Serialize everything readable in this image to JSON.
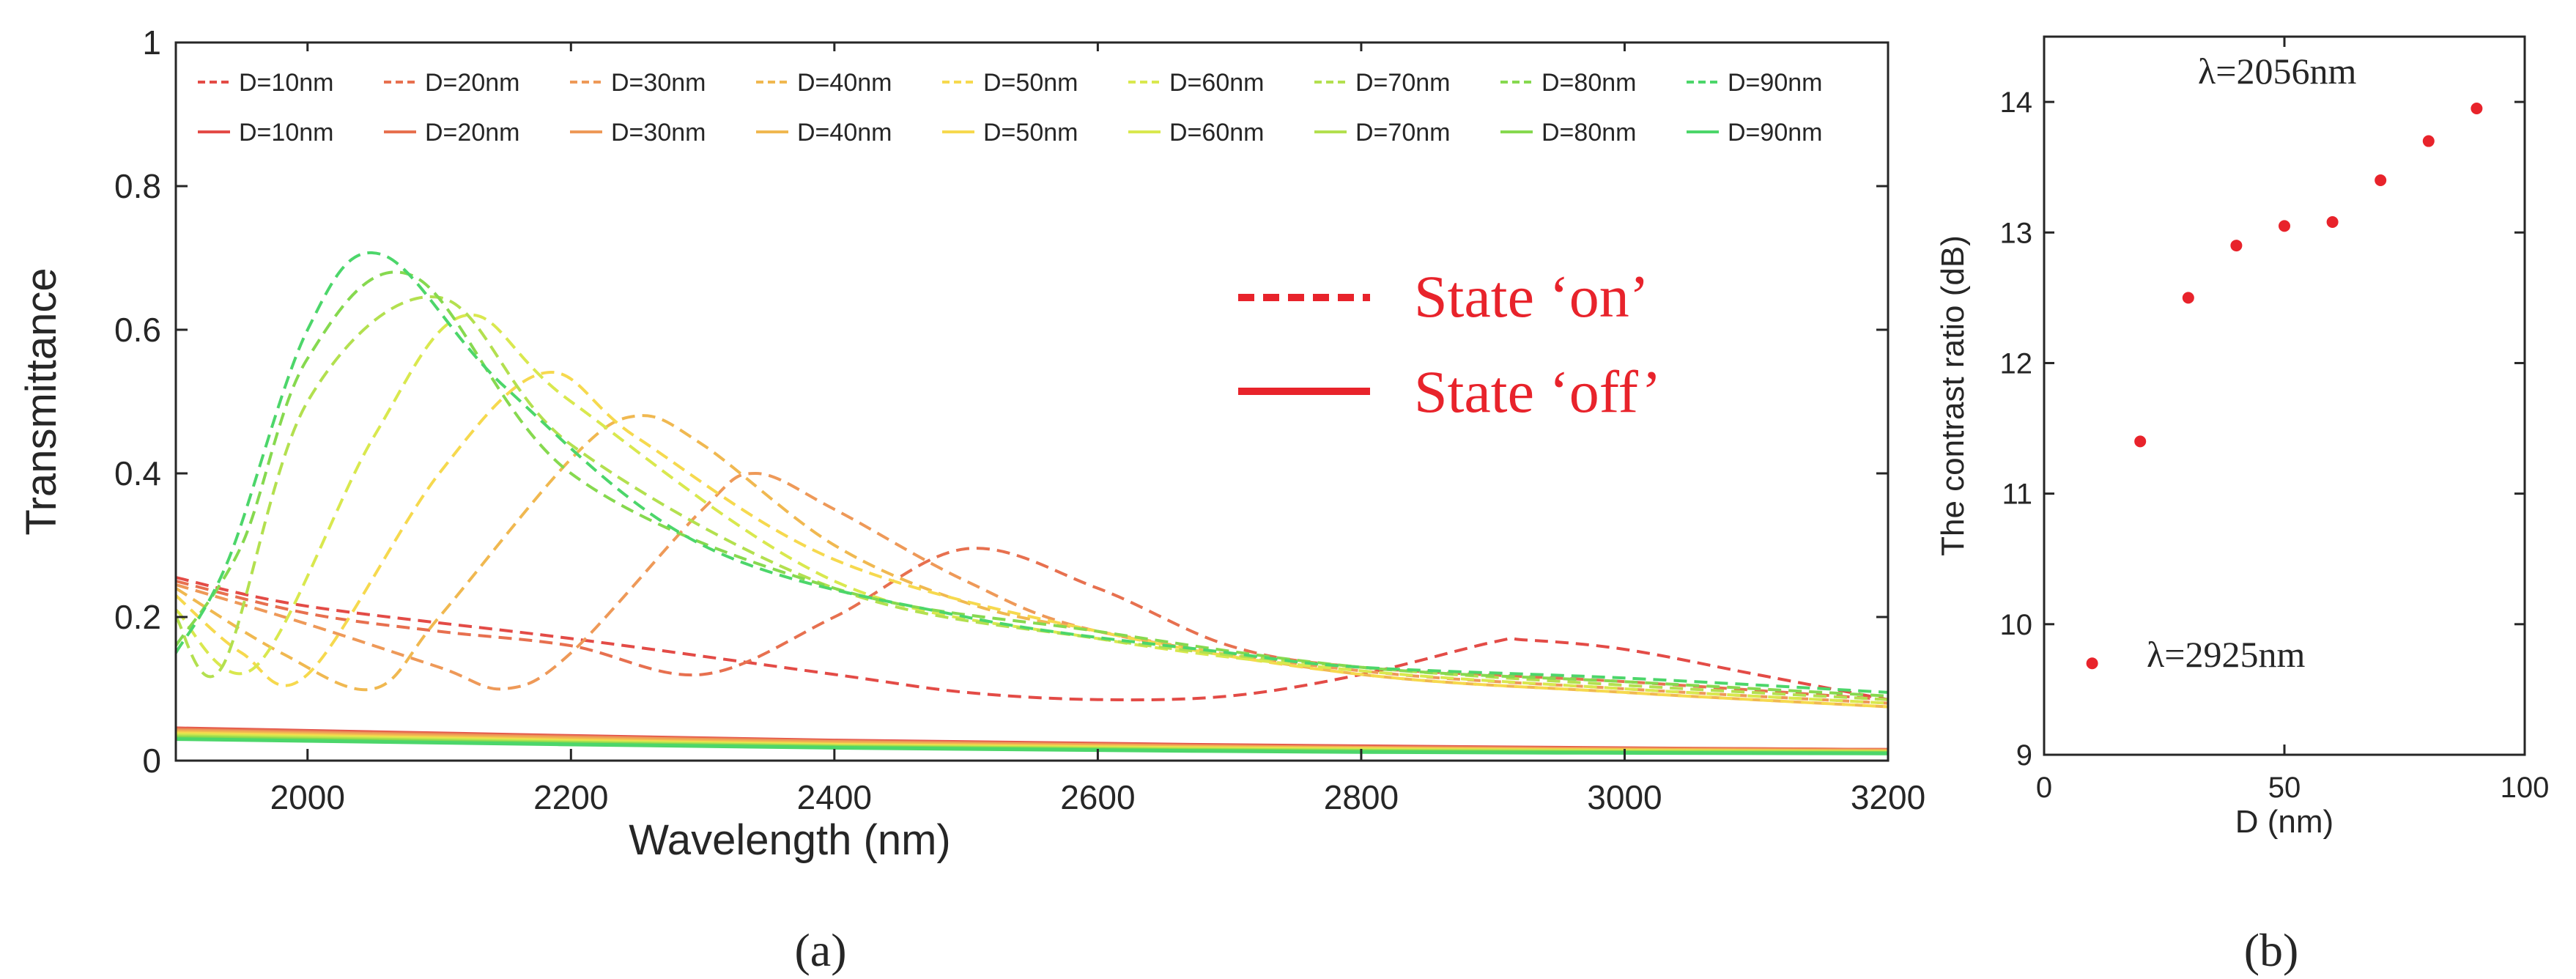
{
  "chart_data": [
    {
      "type": "line",
      "panel_label": "(a)",
      "xlabel": "Wavelength (nm)",
      "ylabel": "Transmittance",
      "xlim": [
        1900,
        3200
      ],
      "ylim": [
        0,
        1
      ],
      "x_ticks": [
        "2000",
        "2200",
        "2400",
        "2600",
        "2800",
        "3000",
        "3200"
      ],
      "y_ticks": [
        "0",
        "0.2",
        "0.4",
        "0.6",
        "0.8",
        "1"
      ],
      "state_on_label": "State   ‘on’",
      "state_off_label": "State   ‘off’",
      "state_color": "#e8232b",
      "series": [
        {
          "name": "D=10nm",
          "state": "on",
          "color": "#e34b46",
          "points": [
            [
              1900,
              0.255
            ],
            [
              2000,
              0.215
            ],
            [
              2200,
              0.17
            ],
            [
              2400,
              0.12
            ],
            [
              2500,
              0.095
            ],
            [
              2600,
              0.085
            ],
            [
              2700,
              0.09
            ],
            [
              2800,
              0.12
            ],
            [
              2900,
              0.165
            ],
            [
              2925,
              0.168
            ],
            [
              3000,
              0.155
            ],
            [
              3100,
              0.12
            ],
            [
              3200,
              0.085
            ]
          ]
        },
        {
          "name": "D=20nm",
          "state": "on",
          "color": "#e7704f",
          "points": [
            [
              1900,
              0.25
            ],
            [
              2000,
              0.205
            ],
            [
              2100,
              0.18
            ],
            [
              2200,
              0.16
            ],
            [
              2300,
              0.12
            ],
            [
              2400,
              0.2
            ],
            [
              2500,
              0.295
            ],
            [
              2600,
              0.24
            ],
            [
              2700,
              0.16
            ],
            [
              2800,
              0.13
            ],
            [
              3000,
              0.11
            ],
            [
              3200,
              0.085
            ]
          ]
        },
        {
          "name": "D=30nm",
          "state": "on",
          "color": "#ee9958",
          "points": [
            [
              1900,
              0.245
            ],
            [
              2000,
              0.19
            ],
            [
              2100,
              0.13
            ],
            [
              2150,
              0.1
            ],
            [
              2200,
              0.15
            ],
            [
              2300,
              0.35
            ],
            [
              2340,
              0.4
            ],
            [
              2400,
              0.35
            ],
            [
              2500,
              0.25
            ],
            [
              2600,
              0.18
            ],
            [
              2800,
              0.125
            ],
            [
              3000,
              0.1
            ],
            [
              3200,
              0.08
            ]
          ]
        },
        {
          "name": "D=40nm",
          "state": "on",
          "color": "#f0b850",
          "points": [
            [
              1900,
              0.24
            ],
            [
              1980,
              0.15
            ],
            [
              2050,
              0.1
            ],
            [
              2100,
              0.2
            ],
            [
              2200,
              0.42
            ],
            [
              2250,
              0.48
            ],
            [
              2300,
              0.44
            ],
            [
              2400,
              0.3
            ],
            [
              2500,
              0.22
            ],
            [
              2600,
              0.18
            ],
            [
              2800,
              0.12
            ],
            [
              3000,
              0.095
            ],
            [
              3200,
              0.075
            ]
          ]
        },
        {
          "name": "D=50nm",
          "state": "on",
          "color": "#f6d94e",
          "points": [
            [
              1900,
              0.23
            ],
            [
              1950,
              0.15
            ],
            [
              2000,
              0.12
            ],
            [
              2100,
              0.4
            ],
            [
              2180,
              0.54
            ],
            [
              2250,
              0.45
            ],
            [
              2400,
              0.28
            ],
            [
              2600,
              0.18
            ],
            [
              2800,
              0.12
            ],
            [
              3000,
              0.095
            ],
            [
              3200,
              0.075
            ]
          ]
        },
        {
          "name": "D=60nm",
          "state": "on",
          "color": "#d9e84e",
          "points": [
            [
              1900,
              0.21
            ],
            [
              1960,
              0.13
            ],
            [
              2050,
              0.45
            ],
            [
              2120,
              0.62
            ],
            [
              2200,
              0.5
            ],
            [
              2400,
              0.25
            ],
            [
              2600,
              0.17
            ],
            [
              2800,
              0.125
            ],
            [
              3000,
              0.1
            ],
            [
              3200,
              0.08
            ]
          ]
        },
        {
          "name": "D=70nm",
          "state": "on",
          "color": "#b3e04f",
          "points": [
            [
              1900,
              0.2
            ],
            [
              1935,
              0.13
            ],
            [
              2000,
              0.5
            ],
            [
              2100,
              0.645
            ],
            [
              2200,
              0.44
            ],
            [
              2400,
              0.24
            ],
            [
              2600,
              0.17
            ],
            [
              2800,
              0.13
            ],
            [
              3000,
              0.105
            ],
            [
              3200,
              0.085
            ]
          ]
        },
        {
          "name": "D=80nm",
          "state": "on",
          "color": "#86d94f",
          "points": [
            [
              1900,
              0.16
            ],
            [
              1950,
              0.3
            ],
            [
              2000,
              0.56
            ],
            [
              2080,
              0.675
            ],
            [
              2200,
              0.4
            ],
            [
              2400,
              0.24
            ],
            [
              2600,
              0.18
            ],
            [
              2800,
              0.13
            ],
            [
              3000,
              0.11
            ],
            [
              3200,
              0.09
            ]
          ]
        },
        {
          "name": "D=90nm",
          "state": "on",
          "color": "#4cd66a",
          "points": [
            [
              1900,
              0.15
            ],
            [
              1940,
              0.28
            ],
            [
              2000,
              0.6
            ],
            [
              2056,
              0.705
            ],
            [
              2150,
              0.52
            ],
            [
              2300,
              0.3
            ],
            [
              2500,
              0.2
            ],
            [
              2700,
              0.15
            ],
            [
              2800,
              0.13
            ],
            [
              3000,
              0.115
            ],
            [
              3200,
              0.095
            ]
          ]
        },
        {
          "name": "D=10nm",
          "state": "off",
          "color": "#e34b46",
          "points": [
            [
              1900,
              0.045
            ],
            [
              2400,
              0.028
            ],
            [
              2800,
              0.02
            ],
            [
              3200,
              0.015
            ]
          ]
        },
        {
          "name": "D=20nm",
          "state": "off",
          "color": "#e7704f",
          "points": [
            [
              1900,
              0.044
            ],
            [
              2400,
              0.027
            ],
            [
              2800,
              0.019
            ],
            [
              3200,
              0.015
            ]
          ]
        },
        {
          "name": "D=30nm",
          "state": "off",
          "color": "#ee9958",
          "points": [
            [
              1900,
              0.042
            ],
            [
              2400,
              0.026
            ],
            [
              2800,
              0.018
            ],
            [
              3200,
              0.014
            ]
          ]
        },
        {
          "name": "D=40nm",
          "state": "off",
          "color": "#f0b850",
          "points": [
            [
              1900,
              0.04
            ],
            [
              2400,
              0.024
            ],
            [
              2800,
              0.017
            ],
            [
              3200,
              0.013
            ]
          ]
        },
        {
          "name": "D=50nm",
          "state": "off",
          "color": "#f6d94e",
          "points": [
            [
              1900,
              0.038
            ],
            [
              2400,
              0.022
            ],
            [
              2800,
              0.016
            ],
            [
              3200,
              0.012
            ]
          ]
        },
        {
          "name": "D=60nm",
          "state": "off",
          "color": "#d9e84e",
          "points": [
            [
              1900,
              0.036
            ],
            [
              2400,
              0.021
            ],
            [
              2800,
              0.015
            ],
            [
              3200,
              0.012
            ]
          ]
        },
        {
          "name": "D=70nm",
          "state": "off",
          "color": "#b3e04f",
          "points": [
            [
              1900,
              0.034
            ],
            [
              2400,
              0.02
            ],
            [
              2800,
              0.014
            ],
            [
              3200,
              0.011
            ]
          ]
        },
        {
          "name": "D=80nm",
          "state": "off",
          "color": "#86d94f",
          "points": [
            [
              1900,
              0.032
            ],
            [
              2400,
              0.019
            ],
            [
              2800,
              0.013
            ],
            [
              3200,
              0.011
            ]
          ]
        },
        {
          "name": "D=90nm",
          "state": "off",
          "color": "#4cd66a",
          "points": [
            [
              1900,
              0.03
            ],
            [
              2400,
              0.018
            ],
            [
              2800,
              0.012
            ],
            [
              3200,
              0.01
            ]
          ]
        }
      ]
    },
    {
      "type": "scatter",
      "panel_label": "(b)",
      "xlabel": "D (nm)",
      "ylabel": "The contrast ratio (dB)",
      "xlim": [
        0,
        100
      ],
      "ylim": [
        9,
        14.5
      ],
      "x_ticks": [
        "0",
        "50",
        "100"
      ],
      "y_ticks": [
        "9",
        "10",
        "11",
        "12",
        "13",
        "14"
      ],
      "marker_color": "#e8232b",
      "annotations": [
        "λ=2056nm",
        "λ=2925nm"
      ],
      "x": [
        10,
        20,
        30,
        40,
        50,
        60,
        70,
        80,
        90
      ],
      "y": [
        9.7,
        11.4,
        12.5,
        12.9,
        13.05,
        13.08,
        13.4,
        13.7,
        13.95
      ]
    }
  ]
}
